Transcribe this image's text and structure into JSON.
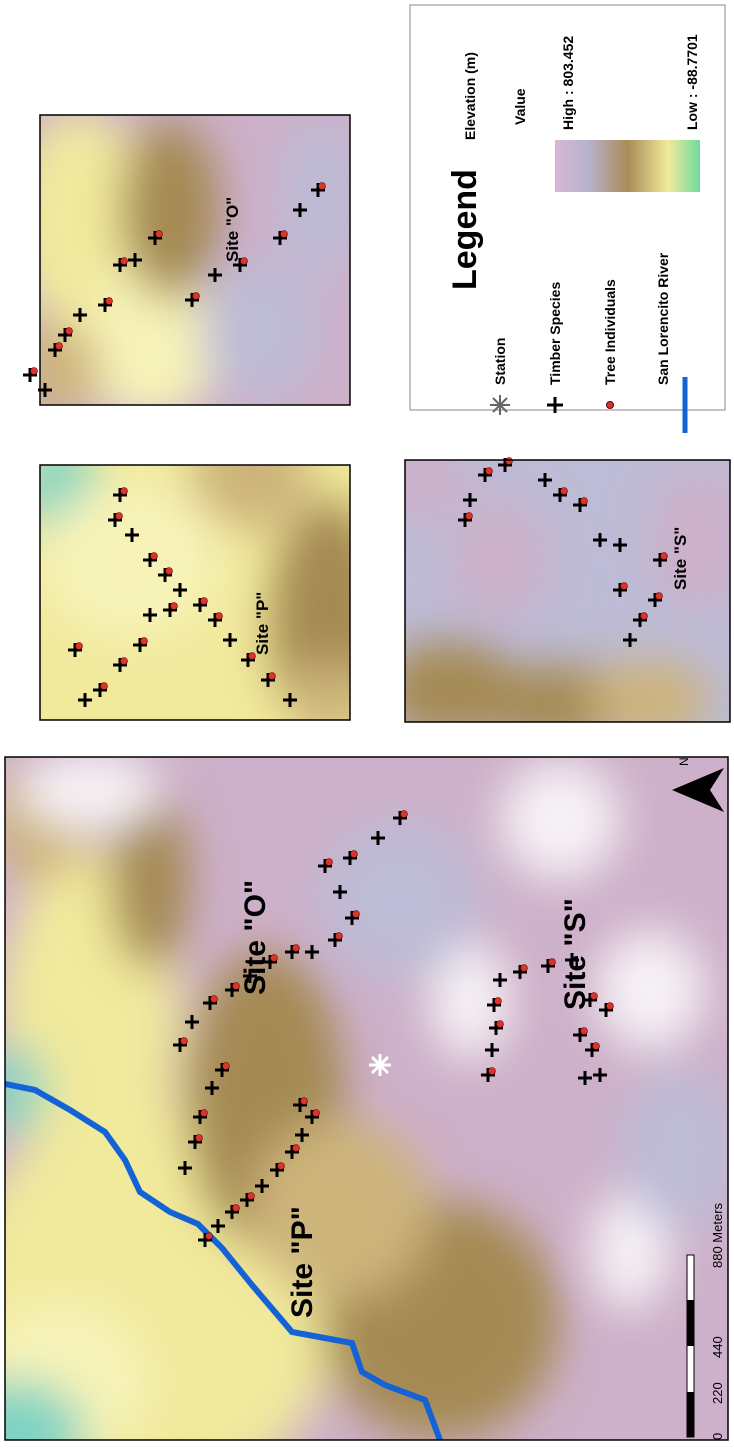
{
  "main_map": {
    "site_labels": [
      "Site \"O\"",
      "Site \"P\"",
      "Site \"S\""
    ],
    "scale_bar": {
      "labels": [
        "0",
        "220",
        "440",
        "880 Meters"
      ]
    },
    "north_label": "N"
  },
  "insets": [
    {
      "label": "Site \"P\""
    },
    {
      "label": "Site \"O\""
    },
    {
      "label": "Site \"S\""
    }
  ],
  "legend": {
    "title": "Legend",
    "items": [
      "Station",
      "Timber Species",
      "Tree Individuals",
      "San Lorencito River"
    ],
    "elevation": {
      "title": "Elevation (m)",
      "subtitle": "Value",
      "high": "High : 803.452",
      "low": "Low : -88.7701"
    }
  }
}
